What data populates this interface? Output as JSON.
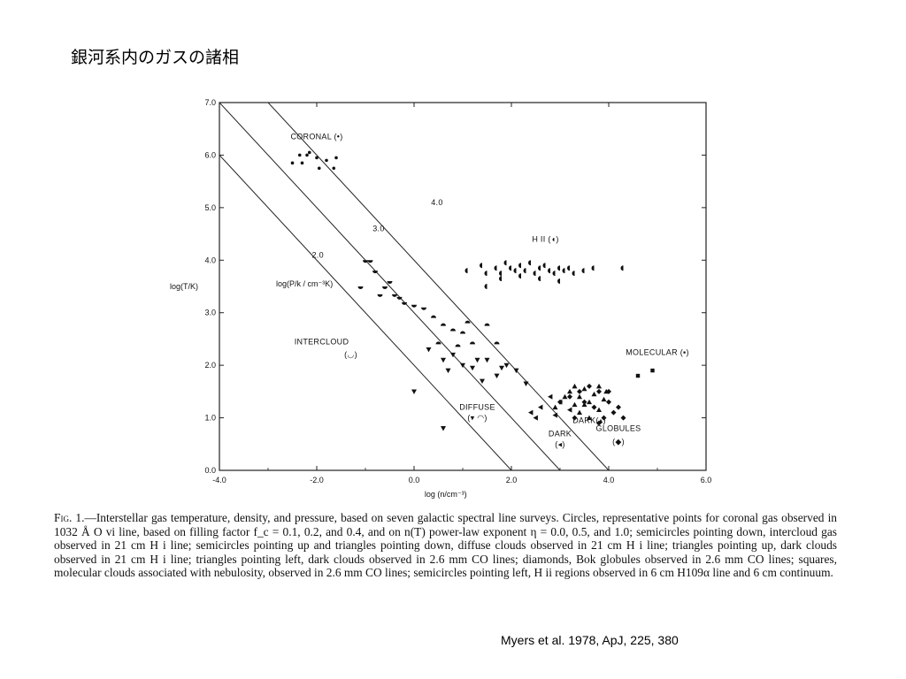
{
  "slide": {
    "title": "銀河系内のガスの諸相",
    "citation": "Myers et al. 1978, ApJ, 225, 380"
  },
  "caption": {
    "label": "Fig. 1.",
    "text": "—Interstellar gas temperature, density, and pressure, based on seven galactic spectral line surveys. Circles, representative points for coronal gas observed in 1032 Å O vi line, based on filling factor f_c = 0.1, 0.2, and 0.4, and on n(T) power-law exponent η = 0.0, 0.5, and 1.0; semicircles pointing down, intercloud gas observed in 21 cm H i line; semicircles pointing up and triangles pointing down, diffuse clouds observed in 21 cm H i line; triangles pointing up, dark clouds observed in 21 cm H i line; triangles pointing left, dark clouds observed in 2.6 mm CO lines; diamonds, Bok globules observed in 2.6 mm CO lines; squares, molecular clouds associated with nebulosity, observed in 2.6 mm CO lines; semicircles pointing left, H ii regions observed in 6 cm H109α line and 6 cm continuum."
  },
  "chart_data": {
    "type": "scatter",
    "title": "",
    "xlabel": "log (n/cm⁻³)",
    "ylabel": "log(T/K)",
    "xlim": [
      -4.0,
      6.0
    ],
    "ylim": [
      0.0,
      7.0
    ],
    "xticks": [
      "-4.0",
      "-2.0",
      "0.0",
      "2.0",
      "4.0",
      "6.0"
    ],
    "yticks": [
      "0.0",
      "1.0",
      "2.0",
      "3.0",
      "4.0",
      "5.0",
      "6.0",
      "7.0"
    ],
    "isobar_label": "log(P/k / cm⁻³K)",
    "isobars": [
      {
        "name": "2.0",
        "value": 2.0
      },
      {
        "name": "3.0",
        "value": 3.0
      },
      {
        "name": "4.0",
        "value": 4.0
      }
    ],
    "annotations": [
      {
        "text": "CORONAL (•)",
        "x": -2.0,
        "y": 6.3
      },
      {
        "text": "H II (◖)",
        "x": 2.7,
        "y": 4.35
      },
      {
        "text": "INTERCLOUD",
        "x": -1.9,
        "y": 2.4
      },
      {
        "text": "(◡)",
        "x": -1.3,
        "y": 2.15
      },
      {
        "text": "DIFFUSE",
        "x": 1.3,
        "y": 1.15
      },
      {
        "text": "(▾ ◠)",
        "x": 1.3,
        "y": 0.95
      },
      {
        "text": "DARK(▴)",
        "x": 3.6,
        "y": 0.9
      },
      {
        "text": "MOLECULAR (▪)",
        "x": 5.0,
        "y": 2.2
      },
      {
        "text": "DARK",
        "x": 3.0,
        "y": 0.65
      },
      {
        "text": "(◂)",
        "x": 3.0,
        "y": 0.45
      },
      {
        "text": "GLOBULES",
        "x": 4.2,
        "y": 0.75
      },
      {
        "text": "(◆)",
        "x": 4.2,
        "y": 0.5
      }
    ],
    "series": [
      {
        "name": "Coronal",
        "marker": "circle",
        "points": [
          [
            -2.3,
            5.85
          ],
          [
            -2.2,
            6.0
          ],
          [
            -2.0,
            5.95
          ],
          [
            -1.8,
            5.9
          ],
          [
            -1.6,
            5.95
          ],
          [
            -2.35,
            6.0
          ],
          [
            -1.95,
            5.75
          ],
          [
            -2.5,
            5.85
          ],
          [
            -1.65,
            5.75
          ],
          [
            -2.15,
            6.05
          ]
        ]
      },
      {
        "name": "HII",
        "marker": "semicircle-left",
        "points": [
          [
            1.1,
            3.8
          ],
          [
            1.4,
            3.9
          ],
          [
            1.5,
            3.75
          ],
          [
            1.7,
            3.85
          ],
          [
            1.8,
            3.75
          ],
          [
            1.9,
            3.95
          ],
          [
            2.0,
            3.85
          ],
          [
            2.1,
            3.8
          ],
          [
            2.2,
            3.9
          ],
          [
            2.3,
            3.8
          ],
          [
            2.4,
            3.95
          ],
          [
            2.5,
            3.75
          ],
          [
            2.6,
            3.85
          ],
          [
            2.7,
            3.9
          ],
          [
            2.8,
            3.8
          ],
          [
            2.9,
            3.75
          ],
          [
            3.0,
            3.85
          ],
          [
            3.1,
            3.8
          ],
          [
            3.2,
            3.85
          ],
          [
            3.3,
            3.75
          ],
          [
            3.5,
            3.8
          ],
          [
            3.7,
            3.85
          ],
          [
            4.3,
            3.85
          ],
          [
            1.5,
            3.5
          ],
          [
            1.8,
            3.65
          ],
          [
            2.2,
            3.7
          ],
          [
            2.6,
            3.65
          ],
          [
            3.0,
            3.6
          ]
        ]
      },
      {
        "name": "Intercloud",
        "marker": "semicircle-down",
        "points": [
          [
            -1.1,
            3.5
          ],
          [
            -1.0,
            4.0
          ],
          [
            -0.9,
            4.0
          ],
          [
            -0.8,
            3.8
          ],
          [
            -0.6,
            3.5
          ],
          [
            -0.4,
            3.35
          ],
          [
            -0.2,
            3.2
          ],
          [
            -0.7,
            3.35
          ],
          [
            -0.5,
            3.6
          ],
          [
            -0.3,
            3.3
          ],
          [
            0.0,
            3.15
          ],
          [
            0.2,
            3.1
          ]
        ]
      },
      {
        "name": "Diffuse semicircles",
        "marker": "semicircle-up",
        "points": [
          [
            0.4,
            2.9
          ],
          [
            0.6,
            2.75
          ],
          [
            0.8,
            2.65
          ],
          [
            1.0,
            2.6
          ],
          [
            1.2,
            2.4
          ],
          [
            1.1,
            2.8
          ],
          [
            1.5,
            2.75
          ],
          [
            1.7,
            2.4
          ],
          [
            0.5,
            2.4
          ],
          [
            0.9,
            2.35
          ]
        ]
      },
      {
        "name": "Diffuse triangles",
        "marker": "triangle-down",
        "points": [
          [
            0.3,
            2.3
          ],
          [
            0.6,
            2.1
          ],
          [
            0.7,
            1.9
          ],
          [
            1.0,
            2.0
          ],
          [
            1.2,
            1.95
          ],
          [
            1.5,
            2.1
          ],
          [
            1.7,
            1.8
          ],
          [
            1.9,
            2.0
          ],
          [
            2.1,
            1.9
          ],
          [
            2.3,
            1.65
          ],
          [
            0.0,
            1.5
          ],
          [
            0.6,
            0.8
          ],
          [
            1.4,
            1.7
          ],
          [
            0.8,
            2.2
          ],
          [
            1.8,
            1.95
          ],
          [
            1.3,
            2.1
          ]
        ]
      },
      {
        "name": "Dark HI",
        "marker": "triangle-up",
        "points": [
          [
            2.9,
            1.2
          ],
          [
            3.1,
            1.4
          ],
          [
            3.2,
            1.5
          ],
          [
            3.3,
            1.6
          ],
          [
            3.4,
            1.4
          ],
          [
            3.5,
            1.55
          ],
          [
            3.6,
            1.3
          ],
          [
            3.7,
            1.45
          ],
          [
            3.8,
            1.6
          ],
          [
            3.9,
            1.35
          ],
          [
            3.4,
            1.1
          ],
          [
            3.6,
            1.0
          ],
          [
            3.3,
            1.25
          ],
          [
            3.8,
            1.15
          ],
          [
            3.5,
            1.25
          ],
          [
            3.95,
            1.5
          ]
        ]
      },
      {
        "name": "Dark CO",
        "marker": "triangle-left",
        "points": [
          [
            2.4,
            1.1
          ],
          [
            2.6,
            1.2
          ],
          [
            2.8,
            1.4
          ],
          [
            3.0,
            1.3
          ],
          [
            3.2,
            1.15
          ],
          [
            2.9,
            1.05
          ],
          [
            2.5,
            1.0
          ]
        ]
      },
      {
        "name": "Globules",
        "marker": "diamond",
        "points": [
          [
            3.0,
            1.3
          ],
          [
            3.2,
            1.4
          ],
          [
            3.4,
            1.5
          ],
          [
            3.6,
            1.6
          ],
          [
            3.8,
            1.5
          ],
          [
            4.0,
            1.3
          ],
          [
            4.1,
            1.1
          ],
          [
            3.9,
            1.0
          ],
          [
            3.7,
            1.2
          ],
          [
            3.5,
            1.3
          ],
          [
            4.2,
            1.2
          ],
          [
            4.3,
            1.0
          ],
          [
            3.3,
            1.0
          ],
          [
            4.0,
            1.5
          ],
          [
            3.8,
            0.9
          ]
        ]
      },
      {
        "name": "Molecular",
        "marker": "square",
        "points": [
          [
            4.9,
            1.9
          ],
          [
            4.6,
            1.8
          ]
        ]
      }
    ]
  }
}
